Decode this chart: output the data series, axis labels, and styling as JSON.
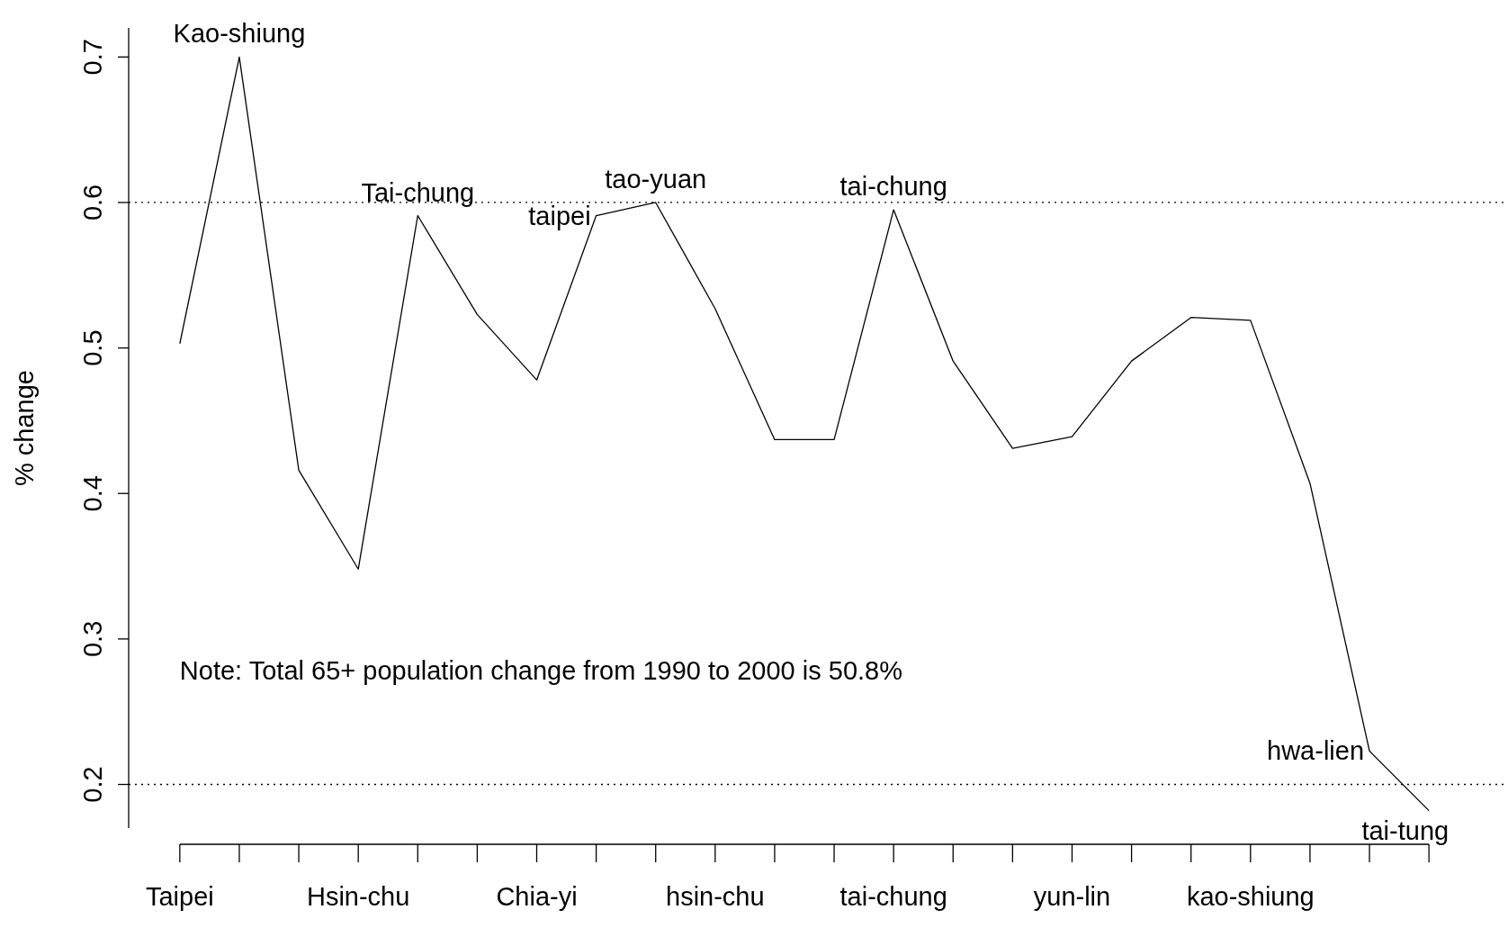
{
  "chart_data": {
    "type": "line",
    "ylabel": "% change",
    "categories": [
      "Taipei",
      null,
      null,
      "Hsin-chu",
      null,
      null,
      "Chia-yi",
      null,
      null,
      "hsin-chu",
      null,
      null,
      "tai-chung",
      null,
      null,
      "yun-lin",
      null,
      null,
      "kao-shiung",
      null,
      null,
      null
    ],
    "values": [
      0.503,
      0.7,
      0.416,
      0.348,
      0.591,
      0.523,
      0.478,
      0.591,
      0.6,
      0.527,
      0.437,
      0.437,
      0.595,
      0.491,
      0.431,
      0.439,
      0.491,
      0.521,
      0.519,
      0.407,
      0.223,
      0.182
    ],
    "value_labels": [
      null,
      "Kao-shiung",
      null,
      null,
      "Tai-chung",
      null,
      null,
      "taipei",
      "tao-yuan",
      null,
      null,
      null,
      "tai-chung",
      null,
      null,
      null,
      null,
      null,
      null,
      null,
      "hwa-lien",
      "tai-tung"
    ],
    "color": "#000000",
    "line_style": "solid",
    "marker": "none",
    "grid": false,
    "ylim": [
      0.17,
      0.72
    ],
    "yticks": [
      0.2,
      0.3,
      0.4,
      0.5,
      0.6,
      0.7
    ],
    "ref_lines": [
      {
        "axis": "y",
        "value": 0.6,
        "line_style": "dotted"
      },
      {
        "axis": "y",
        "value": 0.2,
        "line_style": "dotted"
      }
    ],
    "annotations": [
      "Note: Total 65+ population change from 1990 to 2000 is 50.8%"
    ]
  }
}
